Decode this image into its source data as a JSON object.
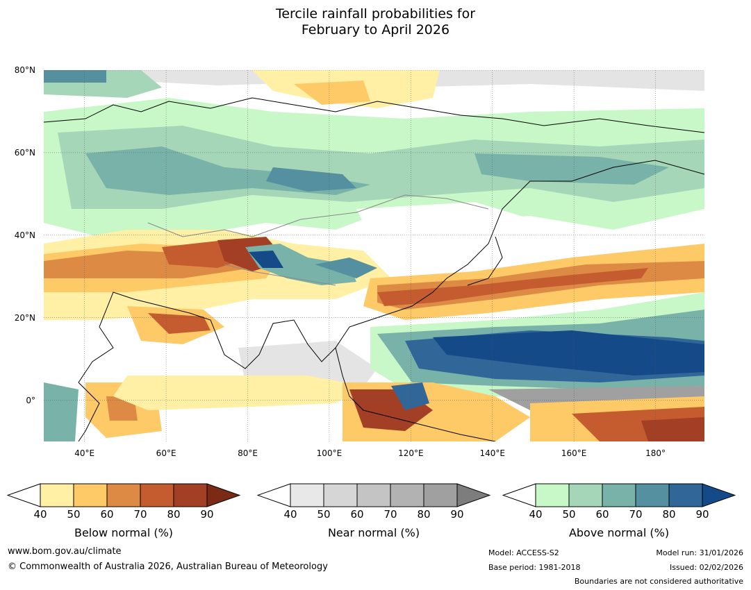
{
  "title": {
    "line1": "Tercile rainfall probabilities for",
    "line2": "February to April 2026"
  },
  "map": {
    "extent": {
      "lon_min": 30,
      "lon_max": 192,
      "lat_min": -10,
      "lat_max": 80
    },
    "lat_ticks": [
      {
        "value": 80,
        "label": "80°N"
      },
      {
        "value": 60,
        "label": "60°N"
      },
      {
        "value": 40,
        "label": "40°N"
      },
      {
        "value": 20,
        "label": "20°N"
      },
      {
        "value": 0,
        "label": "0°"
      }
    ],
    "lon_ticks": [
      {
        "value": 40,
        "label": "40°E"
      },
      {
        "value": 60,
        "label": "60°E"
      },
      {
        "value": 80,
        "label": "80°E"
      },
      {
        "value": 100,
        "label": "100°E"
      },
      {
        "value": 120,
        "label": "120°E"
      },
      {
        "value": 140,
        "label": "140°E"
      },
      {
        "value": 160,
        "label": "160°E"
      },
      {
        "value": 180,
        "label": "180°"
      }
    ]
  },
  "colorbars": [
    {
      "name": "below-normal",
      "label": "Below normal (%)",
      "ticks": [
        "40",
        "50",
        "60",
        "70",
        "80",
        "90"
      ],
      "colors": [
        "#fff0a6",
        "#fec967",
        "#dd8b44",
        "#c55c30",
        "#a33f24"
      ],
      "over_color": "#7a2a15"
    },
    {
      "name": "near-normal",
      "label": "Near normal (%)",
      "ticks": [
        "40",
        "50",
        "60",
        "70",
        "80",
        "90"
      ],
      "colors": [
        "#e8e8e8",
        "#d6d6d6",
        "#c4c4c4",
        "#b2b2b2",
        "#a0a0a0"
      ],
      "over_color": "#7d7d7d"
    },
    {
      "name": "above-normal",
      "label": "Above normal (%)",
      "ticks": [
        "40",
        "50",
        "60",
        "70",
        "80",
        "90"
      ],
      "colors": [
        "#c8f7c8",
        "#a6d6b8",
        "#79b2a8",
        "#5590a0",
        "#316698"
      ],
      "over_color": "#154a88"
    }
  ],
  "footer": {
    "website": "www.bom.gov.au/climate",
    "copyright": "© Commonwealth of Australia 2026, Australian Bureau of Meteorology",
    "model": "Model: ACCESS-S2",
    "base_period": "Base period: 1981-2018",
    "model_run": "Model run: 31/01/2026",
    "issued": "Issued: 02/02/2026",
    "disclaimer": "Boundaries are not considered authoritative"
  }
}
